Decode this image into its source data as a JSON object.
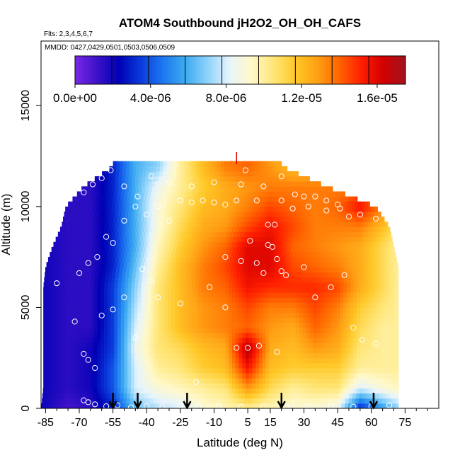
{
  "chart_data": {
    "type": "heatmap",
    "title": "ATOM4 Southbound jH2O2_OH_OH_CAFS",
    "subtitle_flights": "Flts: 2,3,4,5,6,7",
    "subtitle_dates": "MMDD: 0427,0429,0501,0503,0506,0509",
    "xlabel": "Latitude (deg N)",
    "ylabel": "Altitude (m)",
    "xlim": [
      -87,
      90
    ],
    "ylim": [
      0,
      18200
    ],
    "x_ticks": [
      -85,
      -70,
      -55,
      -40,
      -25,
      -10,
      5,
      15,
      30,
      45,
      60,
      75
    ],
    "x_tick_labels": [
      "-85",
      "-70",
      "-55",
      "-40",
      "-25",
      "-10",
      "5",
      "15",
      "30",
      "45",
      "60",
      "75"
    ],
    "y_ticks": [
      0,
      5000,
      10000,
      15000
    ],
    "y_tick_labels": [
      "0",
      "5000",
      "10000",
      "15000"
    ],
    "colorbar": {
      "min": 0,
      "max": 1.75e-05,
      "ticks": [
        0,
        4e-06,
        8e-06,
        1.2e-05,
        1.6e-05
      ],
      "tick_labels": [
        "0.0e+00",
        "4.0e-06",
        "8.0e-06",
        "1.2e-05",
        "1.6e-05"
      ],
      "colors": [
        "#7a28e6",
        "#3c12c8",
        "#0000b4",
        "#0a3cdc",
        "#1e78f0",
        "#3caaf0",
        "#8cd2fa",
        "#e6f4fc",
        "#fff8c8",
        "#ffe678",
        "#ffc828",
        "#ffa014",
        "#ff6400",
        "#ff1e00",
        "#d20000",
        "#a0141e"
      ]
    },
    "profile_altitude_m": [
      0,
      1000,
      2000,
      3000,
      4000,
      5000,
      6000,
      7000,
      8000,
      9000,
      10000,
      11000,
      12000
    ],
    "profile_latitude": [
      -85,
      -75,
      -65,
      -55,
      -45,
      -35,
      -25,
      -15,
      -5,
      5,
      15,
      25,
      35,
      45,
      55,
      65,
      72
    ],
    "jh2o2_values": [
      [
        2e-06,
        1e-06,
        1.5e-06,
        3e-06,
        6.5e-06,
        7.5e-06,
        8e-06,
        9e-06,
        9.5e-06,
        1e-05,
        9.5e-06,
        9e-06,
        9e-06,
        8.5e-06,
        3e-06,
        5.5e-06,
        7e-06
      ],
      [
        2e-06,
        1.5e-06,
        2e-06,
        4e-06,
        8e-06,
        9e-06,
        9.5e-06,
        1e-05,
        1.05e-05,
        1.3e-05,
        1.1e-05,
        1e-05,
        1.05e-05,
        1.05e-05,
        8e-06,
        9e-06,
        9.5e-06
      ],
      [
        2e-06,
        1.5e-06,
        2e-06,
        4e-06,
        8e-06,
        1e-05,
        1.05e-05,
        1.15e-05,
        1.2e-05,
        1.55e-05,
        1.2e-05,
        1.15e-05,
        1.15e-05,
        1.15e-05,
        1e-05,
        1e-05,
        1e-05
      ],
      [
        2e-06,
        1.5e-06,
        2e-06,
        3.5e-06,
        8.5e-06,
        1.05e-05,
        1.1e-05,
        1.2e-05,
        1.25e-05,
        1.7e-05,
        1.25e-05,
        1.2e-05,
        1.3e-05,
        1.25e-05,
        1.05e-05,
        1e-05,
        1e-05
      ],
      [
        2e-06,
        1.5e-06,
        1.5e-06,
        3.5e-06,
        8e-06,
        1.05e-05,
        1.2e-05,
        1.3e-05,
        1.35e-05,
        1.4e-05,
        1.3e-05,
        1.25e-05,
        1.4e-05,
        1.3e-05,
        1.1e-05,
        1e-05,
        1e-05
      ],
      [
        2e-06,
        1.5e-06,
        1.5e-06,
        3.5e-06,
        7.5e-06,
        1.05e-05,
        1.2e-05,
        1.3e-05,
        1.35e-05,
        1.45e-05,
        1.35e-05,
        1.35e-05,
        1.45e-05,
        1.35e-05,
        1.15e-05,
        1.05e-05,
        1e-05
      ],
      [
        2e-06,
        1.5e-06,
        1.5e-06,
        3.5e-06,
        7e-06,
        1.05e-05,
        1.2e-05,
        1.35e-05,
        1.4e-05,
        1.55e-05,
        1.5e-05,
        1.5e-05,
        1.5e-05,
        1.45e-05,
        1.25e-05,
        1.1e-05,
        1e-05
      ],
      [
        2e-06,
        1.5e-06,
        1.5e-06,
        3e-06,
        6.5e-06,
        1e-05,
        1.2e-05,
        1.35e-05,
        1.45e-05,
        1.6e-05,
        1.6e-05,
        1.45e-05,
        1.4e-05,
        1.35e-05,
        1.25e-05,
        1.1e-05,
        1e-05
      ],
      [
        2e-06,
        1.5e-06,
        1.5e-06,
        3e-06,
        6e-06,
        9.5e-06,
        1.15e-05,
        1.3e-05,
        1.4e-05,
        1.6e-05,
        1.6e-05,
        1.4e-05,
        1.35e-05,
        1.3e-05,
        1.25e-05,
        1.1e-05,
        1e-05
      ],
      [
        2e-06,
        1.5e-06,
        1.5e-06,
        3e-06,
        6e-06,
        9e-06,
        1.1e-05,
        1.25e-05,
        1.3e-05,
        1.45e-05,
        1.55e-05,
        1.45e-05,
        1.35e-05,
        1.35e-05,
        1.35e-05,
        1.2e-05,
        1.05e-05
      ],
      [
        2e-06,
        1.5e-06,
        1.5e-06,
        3e-06,
        6e-06,
        9e-06,
        1.05e-05,
        1.2e-05,
        1.25e-05,
        1.35e-05,
        1.45e-05,
        1.4e-05,
        1.35e-05,
        1.4e-05,
        1.55e-05,
        1.35e-05,
        1.1e-05
      ],
      [
        2e-06,
        1.5e-06,
        1.5e-06,
        3e-06,
        6e-06,
        8.5e-06,
        1e-05,
        1.15e-05,
        1.25e-05,
        1.3e-05,
        1.35e-05,
        1.35e-05,
        1.35e-05,
        1.35e-05,
        1.35e-05,
        1.25e-05,
        1.1e-05
      ],
      [
        2e-06,
        1.5e-06,
        1.5e-06,
        3e-06,
        6e-06,
        7e-06,
        1e-05,
        1.2e-05,
        1.35e-05,
        1.4e-05,
        1.3e-05,
        1.2e-05,
        1.2e-05,
        1.2e-05,
        1.2e-05,
        1.1e-05,
        1e-05
      ]
    ],
    "coverage_lat_range_by_altitude": [
      [
        -87,
        72
      ],
      [
        -86,
        72
      ],
      [
        -86,
        72
      ],
      [
        -86,
        72
      ],
      [
        -86,
        72
      ],
      [
        -86,
        72
      ],
      [
        -86,
        72
      ],
      [
        -85,
        72
      ],
      [
        -82,
        70
      ],
      [
        -78,
        68
      ],
      [
        -76,
        62
      ],
      [
        -68,
        40
      ],
      [
        -55,
        20
      ]
    ],
    "sample_points": [
      [
        -68,
        400
      ],
      [
        -66,
        300
      ],
      [
        -63,
        200
      ],
      [
        -58,
        100
      ],
      [
        -53,
        150
      ],
      [
        -47,
        50
      ],
      [
        -40,
        100
      ],
      [
        -33,
        80
      ],
      [
        -25,
        150
      ],
      [
        -17,
        100
      ],
      [
        -8,
        120
      ],
      [
        2,
        80
      ],
      [
        12,
        100
      ],
      [
        22,
        80
      ],
      [
        32,
        120
      ],
      [
        42,
        100
      ],
      [
        52,
        80
      ],
      [
        60,
        100
      ],
      [
        68,
        150
      ],
      [
        -72,
        4300
      ],
      [
        -68,
        2700
      ],
      [
        -66,
        2400
      ],
      [
        -63,
        2000
      ],
      [
        -60,
        4600
      ],
      [
        -55,
        4900
      ],
      [
        -50,
        5500
      ],
      [
        -45,
        3500
      ],
      [
        -42,
        6900
      ],
      [
        -38,
        6300
      ],
      [
        -35,
        5500
      ],
      [
        -25,
        5200
      ],
      [
        -18,
        1300
      ],
      [
        -12,
        6000
      ],
      [
        -5,
        5000
      ],
      [
        0,
        3000
      ],
      [
        5,
        3000
      ],
      [
        10,
        3100
      ],
      [
        18,
        2800
      ],
      [
        22,
        6600
      ],
      [
        30,
        7000
      ],
      [
        35,
        5500
      ],
      [
        42,
        6000
      ],
      [
        48,
        6600
      ],
      [
        52,
        4000
      ],
      [
        56,
        3400
      ],
      [
        62,
        3200
      ],
      [
        -80,
        6200
      ],
      [
        -70,
        6700
      ],
      [
        -66,
        7200
      ],
      [
        -62,
        7500
      ],
      [
        -58,
        8500
      ],
      [
        -55,
        8200
      ],
      [
        -50,
        9300
      ],
      [
        -45,
        10000
      ],
      [
        -40,
        9600
      ],
      [
        -35,
        10000
      ],
      [
        -30,
        9300
      ],
      [
        -25,
        10300
      ],
      [
        -20,
        10200
      ],
      [
        -15,
        10300
      ],
      [
        -10,
        10200
      ],
      [
        -5,
        10100
      ],
      [
        0,
        10300
      ],
      [
        4,
        11800
      ],
      [
        9,
        10300
      ],
      [
        14,
        9100
      ],
      [
        17,
        9100
      ],
      [
        20,
        10300
      ],
      [
        25,
        9900
      ],
      [
        30,
        10500
      ],
      [
        35,
        10500
      ],
      [
        40,
        10300
      ],
      [
        45,
        10100
      ],
      [
        50,
        9500
      ],
      [
        55,
        9600
      ],
      [
        62,
        9400
      ],
      [
        -72,
        11600
      ],
      [
        -68,
        10700
      ],
      [
        -64,
        11100
      ],
      [
        -60,
        11400
      ],
      [
        -56,
        11800
      ],
      [
        -50,
        11000
      ],
      [
        -44,
        10500
      ],
      [
        -38,
        11500
      ],
      [
        -30,
        11200
      ],
      [
        -20,
        11000
      ],
      [
        -10,
        11200
      ],
      [
        2,
        11100
      ],
      [
        12,
        11000
      ],
      [
        20,
        11500
      ],
      [
        26,
        10600
      ],
      [
        32,
        10000
      ],
      [
        40,
        9800
      ],
      [
        46,
        9900
      ],
      [
        -5,
        7500
      ],
      [
        2,
        7300
      ],
      [
        6,
        8300
      ],
      [
        9,
        7200
      ],
      [
        12,
        6700
      ],
      [
        14,
        8100
      ],
      [
        16,
        8000
      ],
      [
        18,
        7400
      ],
      [
        20,
        6800
      ]
    ],
    "flight_arrow_latitudes": [
      -55,
      -44,
      -22,
      20,
      61
    ],
    "grid": false,
    "legend": "colorbar top"
  }
}
